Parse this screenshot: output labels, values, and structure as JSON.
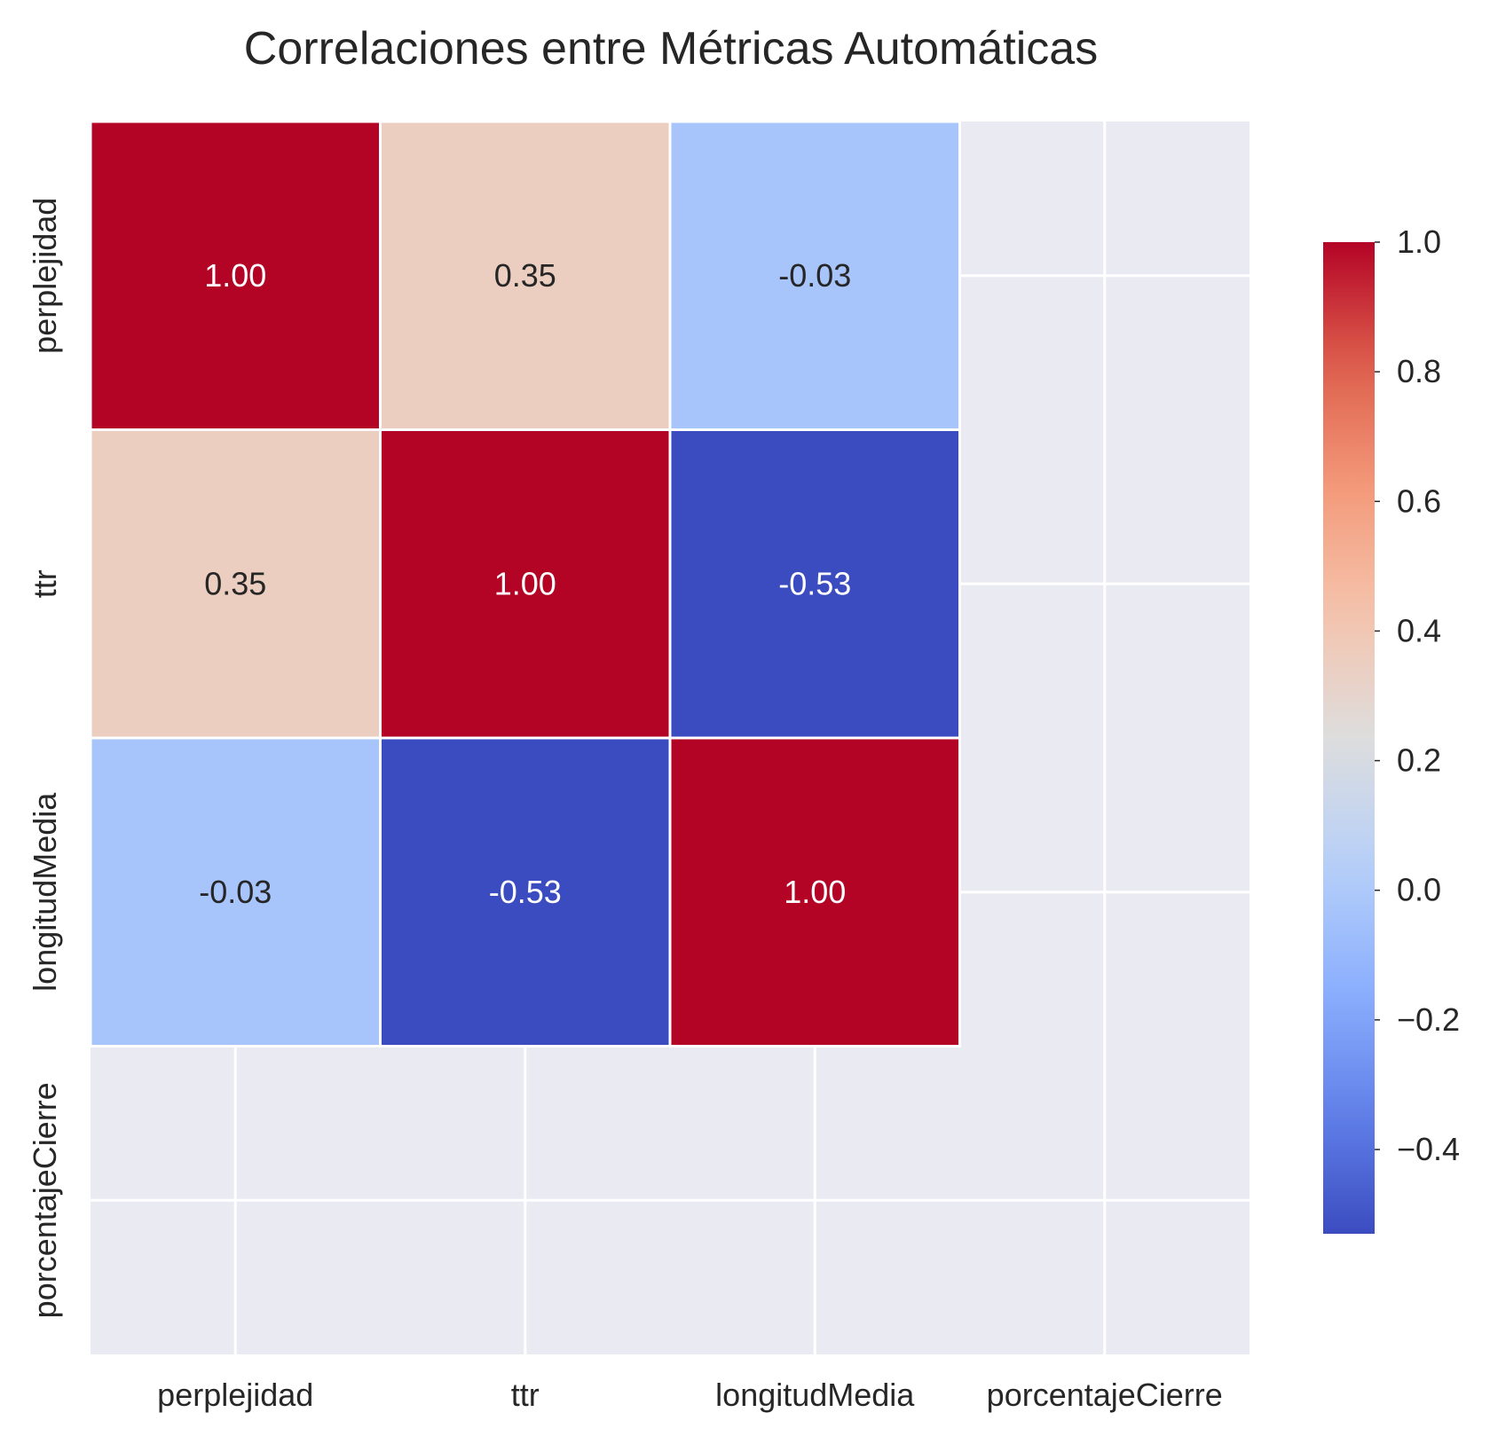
{
  "chart_data": {
    "type": "heatmap",
    "title": "Correlaciones entre Métricas Automáticas",
    "x_labels": [
      "perplejidad",
      "ttr",
      "longitudMedia",
      "porcentajeCierre"
    ],
    "y_labels": [
      "perplejidad",
      "ttr",
      "longitudMedia",
      "porcentajeCierre"
    ],
    "matrix": [
      [
        1.0,
        0.35,
        -0.03,
        null
      ],
      [
        0.35,
        1.0,
        -0.53,
        null
      ],
      [
        -0.03,
        -0.53,
        1.0,
        null
      ],
      [
        null,
        null,
        null,
        null
      ]
    ],
    "annotations": [
      [
        "1.00",
        "0.35",
        "-0.03",
        ""
      ],
      [
        "0.35",
        "1.00",
        "-0.53",
        ""
      ],
      [
        "-0.03",
        "-0.53",
        "1.00",
        ""
      ],
      [
        "",
        "",
        "",
        ""
      ]
    ],
    "colormap": "coolwarm",
    "vmin": -0.53,
    "vmax": 1.0,
    "colorbar_ticks": [
      1.0,
      0.8,
      0.6,
      0.4,
      0.2,
      0.0,
      -0.2,
      -0.4
    ],
    "colorbar_tick_labels": [
      "1.0",
      "0.8",
      "0.6",
      "0.4",
      "0.2",
      "0.0",
      "−0.2",
      "−0.4"
    ],
    "missing_color": "#eaeaf2",
    "grid": true,
    "colorbar_position": "right"
  }
}
